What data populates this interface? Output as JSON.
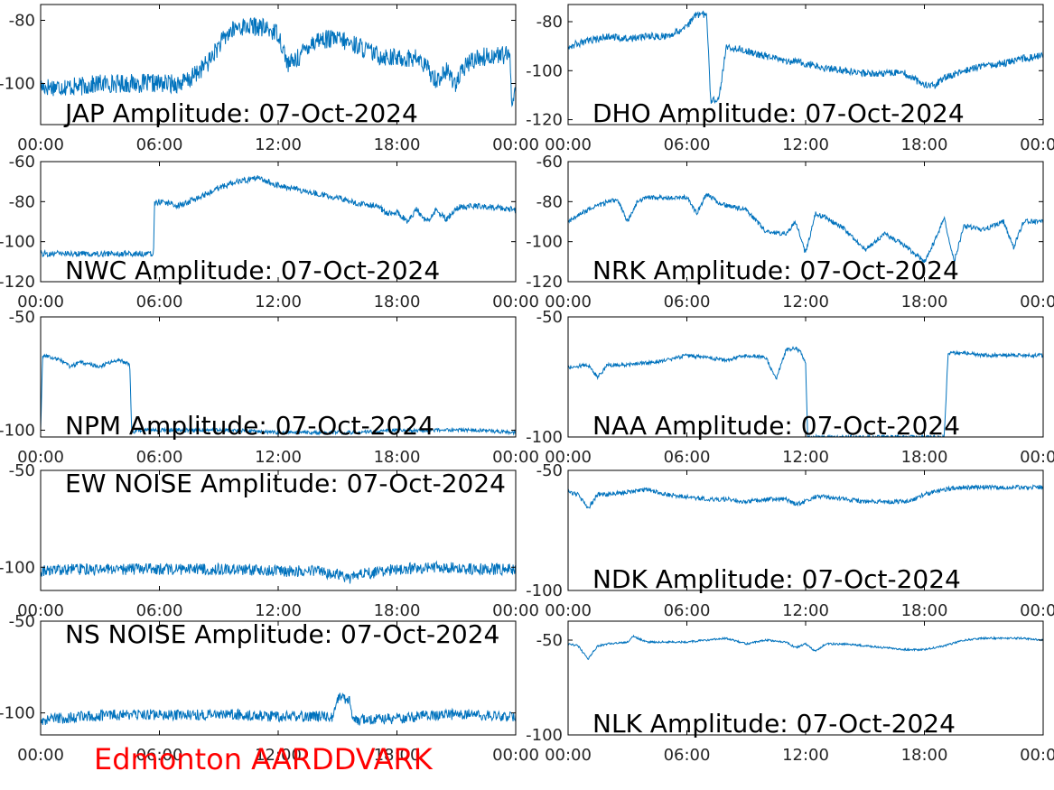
{
  "footer": "Edmonton AARDDVARK",
  "colors": {
    "trace": "#0072BD",
    "footer": "#ff0000",
    "axes": "#000000"
  },
  "chart_data": [
    {
      "id": "jap",
      "type": "line",
      "title": "JAP Amplitude: 07-Oct-2024",
      "xticks": [
        "00:00",
        "06:00",
        "12:00",
        "18:00",
        "00:00"
      ],
      "xlim": [
        0,
        24
      ],
      "yticks": [
        -80,
        -100
      ],
      "ytick_labels": [
        "-80",
        "-100"
      ],
      "ylim": [
        -113,
        -75
      ],
      "noise": 3,
      "series": [
        {
          "x": [
            0,
            1,
            2,
            3,
            4,
            5,
            6,
            7,
            7.5,
            8,
            8.5,
            9,
            9.5,
            10,
            11,
            12,
            12.5,
            13,
            13.5,
            14,
            15,
            16,
            17,
            18,
            19,
            19.5,
            20,
            20.5,
            21,
            21.5,
            22,
            23,
            23.5,
            23.7,
            23.8,
            24
          ],
          "y": [
            -101,
            -101,
            -101,
            -100,
            -100,
            -100,
            -100,
            -100,
            -99,
            -96,
            -93,
            -88,
            -84,
            -82,
            -82,
            -84,
            -94,
            -92,
            -88,
            -86,
            -86,
            -88,
            -91,
            -92,
            -92,
            -95,
            -99,
            -96,
            -100,
            -94,
            -92,
            -91,
            -91,
            -92,
            -105,
            -102
          ]
        }
      ]
    },
    {
      "id": "dho",
      "type": "line",
      "title": "DHO Amplitude: 07-Oct-2024",
      "xticks": [
        "00:00",
        "06:00",
        "12:00",
        "18:00",
        "00:00"
      ],
      "xlim": [
        0,
        24
      ],
      "yticks": [
        -80,
        -100,
        -120
      ],
      "ytick_labels": [
        "-80",
        "-100",
        "-120"
      ],
      "ylim": [
        -122,
        -73
      ],
      "noise": 1.5,
      "series": [
        {
          "x": [
            0,
            1,
            2,
            3,
            4,
            5,
            6,
            6.5,
            7,
            7.2,
            7.6,
            8,
            9,
            10,
            11,
            12,
            13,
            14,
            15,
            16,
            17,
            18,
            18.5,
            19,
            20,
            21,
            22,
            23,
            24
          ],
          "y": [
            -90,
            -88,
            -86,
            -87,
            -86,
            -86,
            -82,
            -77,
            -77,
            -112,
            -112,
            -90,
            -92,
            -94,
            -96,
            -97,
            -99,
            -100,
            -101,
            -101,
            -101,
            -106,
            -106,
            -103,
            -100,
            -98,
            -97,
            -95,
            -94
          ]
        }
      ]
    },
    {
      "id": "nwc",
      "type": "line",
      "title": "NWC Amplitude: 07-Oct-2024",
      "xticks": [
        "00:00",
        "06:00",
        "12:00",
        "18:00",
        "00:00"
      ],
      "xlim": [
        0,
        24
      ],
      "yticks": [
        -60,
        -80,
        -100,
        -120
      ],
      "ytick_labels": [
        "-60",
        "-80",
        "-100",
        "-120"
      ],
      "ylim": [
        -120,
        -60
      ],
      "noise": 1.5,
      "series": [
        {
          "x": [
            0,
            1,
            2,
            3,
            4,
            5,
            5.7,
            5.75,
            6,
            7,
            8,
            9,
            10,
            11,
            12,
            13,
            14,
            15,
            16,
            17,
            17.5,
            18,
            18.5,
            19,
            19.5,
            20,
            20.5,
            21,
            22,
            23,
            24
          ],
          "y": [
            -106,
            -106,
            -106,
            -106,
            -106,
            -106,
            -106,
            -81,
            -80,
            -82,
            -78,
            -73,
            -70,
            -68,
            -72,
            -74,
            -76,
            -78,
            -81,
            -82,
            -86,
            -85,
            -90,
            -84,
            -90,
            -84,
            -89,
            -83,
            -82,
            -83,
            -84
          ]
        }
      ]
    },
    {
      "id": "nrk",
      "type": "line",
      "title": "NRK Amplitude: 07-Oct-2024",
      "xticks": [
        "00:00",
        "06:00",
        "12:00",
        "18:00",
        "00:00"
      ],
      "xlim": [
        0,
        24
      ],
      "yticks": [
        -60,
        -80,
        -100,
        -120
      ],
      "ytick_labels": [
        "-60",
        "-80",
        "-100",
        "-120"
      ],
      "ylim": [
        -120,
        -60
      ],
      "noise": 1.2,
      "series": [
        {
          "x": [
            0,
            1,
            2,
            2.5,
            3,
            3.5,
            4,
            5,
            6,
            6.5,
            7,
            7.5,
            8,
            9,
            10,
            11,
            11.5,
            12,
            12.5,
            13,
            14,
            15,
            16,
            17,
            18,
            18.5,
            19,
            19.5,
            20,
            21,
            22,
            22.5,
            23,
            24
          ],
          "y": [
            -90,
            -84,
            -80,
            -79,
            -90,
            -80,
            -78,
            -78,
            -78,
            -86,
            -76,
            -80,
            -82,
            -84,
            -95,
            -96,
            -90,
            -106,
            -86,
            -88,
            -94,
            -104,
            -96,
            -102,
            -110,
            -100,
            -88,
            -110,
            -92,
            -94,
            -90,
            -103,
            -90,
            -90
          ]
        }
      ]
    },
    {
      "id": "npm",
      "type": "line",
      "title": "NPM Amplitude: 07-Oct-2024",
      "xticks": [
        "00:00",
        "06:00",
        "12:00",
        "18:00",
        "00:00"
      ],
      "xlim": [
        0,
        24
      ],
      "yticks": [
        -50,
        -100
      ],
      "ytick_labels": [
        "-50",
        "-100"
      ],
      "ylim": [
        -103,
        -50
      ],
      "noise": 0.8,
      "series": [
        {
          "x": [
            0,
            0.1,
            1,
            1.5,
            2,
            2.5,
            3,
            3.5,
            4,
            4.5,
            4.6,
            5,
            6,
            8,
            10,
            12,
            14,
            16,
            18,
            20,
            22,
            24
          ],
          "y": [
            -100,
            -67,
            -69,
            -72,
            -70,
            -71,
            -72,
            -70,
            -69,
            -71,
            -101,
            -100,
            -100,
            -100,
            -100,
            -101,
            -101,
            -101,
            -100,
            -100,
            -100,
            -101
          ]
        }
      ]
    },
    {
      "id": "naa",
      "type": "line",
      "title": "NAA Amplitude: 07-Oct-2024",
      "xticks": [
        "00:00",
        "06:00",
        "12:00",
        "18:00",
        "00:00"
      ],
      "xlim": [
        0,
        24
      ],
      "yticks": [
        -50,
        -100
      ],
      "ytick_labels": [
        "-50",
        "-100"
      ],
      "ylim": [
        -100,
        -50
      ],
      "noise": 0.8,
      "series": [
        {
          "x": [
            0,
            1,
            1.5,
            2,
            3,
            4,
            5,
            6,
            7,
            8,
            9,
            10,
            10.5,
            11,
            11.5,
            11.8,
            12,
            12.1,
            12.5,
            14,
            16,
            18,
            19,
            19.2,
            19.3,
            20,
            21,
            22,
            23,
            24
          ],
          "y": [
            -71,
            -70,
            -75,
            -70,
            -70,
            -69,
            -68,
            -66,
            -67,
            -68,
            -66,
            -67,
            -76,
            -64,
            -63,
            -65,
            -70,
            -100,
            -100,
            -100,
            -100,
            -100,
            -100,
            -65,
            -65,
            -65,
            -66,
            -66,
            -66,
            -66
          ]
        }
      ]
    },
    {
      "id": "ew-noise",
      "type": "line",
      "title": "EW NOISE Amplitude: 07-Oct-2024",
      "xticks": [
        "00:00",
        "06:00",
        "12:00",
        "18:00",
        "00:00"
      ],
      "xlim": [
        0,
        24
      ],
      "yticks": [
        -50,
        -100
      ],
      "ytick_labels": [
        "-50",
        "-100"
      ],
      "ylim": [
        -112,
        -50
      ],
      "noise": 3,
      "series": [
        {
          "x": [
            0,
            2,
            4,
            6,
            8,
            10,
            12,
            14,
            15,
            15.5,
            16,
            18,
            20,
            22,
            24
          ],
          "y": [
            -102,
            -101,
            -101,
            -101,
            -101,
            -101,
            -102,
            -102,
            -104,
            -106,
            -104,
            -101,
            -100,
            -101,
            -101
          ]
        }
      ]
    },
    {
      "id": "ndk",
      "type": "line",
      "title": "NDK Amplitude: 07-Oct-2024",
      "xticks": [
        "00:00",
        "06:00",
        "12:00",
        "18:00",
        "00:00"
      ],
      "xlim": [
        0,
        24
      ],
      "yticks": [
        -50,
        -100
      ],
      "ytick_labels": [
        "-50",
        "-100"
      ],
      "ylim": [
        -100,
        -50
      ],
      "noise": 0.9,
      "series": [
        {
          "x": [
            0,
            0.5,
            1,
            1.5,
            2,
            3,
            4,
            5,
            6,
            7,
            8,
            9,
            10,
            11,
            11.5,
            12,
            12.5,
            13,
            14,
            15,
            16,
            17,
            17.5,
            18,
            19,
            20,
            21,
            22,
            23,
            24
          ],
          "y": [
            -59,
            -60,
            -66,
            -60,
            -60,
            -59,
            -58,
            -60,
            -61,
            -62,
            -62,
            -63,
            -62,
            -62,
            -64,
            -63,
            -61,
            -61,
            -62,
            -63,
            -63,
            -63,
            -62,
            -60,
            -58,
            -57,
            -57,
            -57,
            -57,
            -57
          ]
        }
      ]
    },
    {
      "id": "ns-noise",
      "type": "line",
      "title": "NS NOISE Amplitude: 07-Oct-2024",
      "xticks": [
        "00:00",
        "06:00",
        "12:00",
        "18:00",
        "00:00"
      ],
      "xlim": [
        0,
        24
      ],
      "yticks": [
        -50,
        -100
      ],
      "ytick_labels": [
        "-50",
        "-100"
      ],
      "ylim": [
        -112,
        -50
      ],
      "noise": 3,
      "series": [
        {
          "x": [
            0,
            2,
            4,
            6,
            8,
            10,
            12,
            14,
            14.8,
            15,
            15.6,
            15.8,
            16,
            18,
            20,
            22,
            24
          ],
          "y": [
            -104,
            -102,
            -101,
            -101,
            -101,
            -101,
            -102,
            -102,
            -102,
            -92,
            -92,
            -104,
            -104,
            -103,
            -101,
            -101,
            -102
          ]
        }
      ]
    },
    {
      "id": "nlk",
      "type": "line",
      "title": "NLK Amplitude: 07-Oct-2024",
      "xticks": [
        "00:00",
        "06:00",
        "12:00",
        "18:00",
        "00:00"
      ],
      "xlim": [
        0,
        24
      ],
      "yticks": [
        -50,
        -100
      ],
      "ytick_labels": [
        "-50",
        "-100"
      ],
      "ylim": [
        -100,
        -40
      ],
      "noise": 0.5,
      "series": [
        {
          "x": [
            0,
            0.5,
            1,
            1.5,
            2,
            3,
            3.3,
            4,
            5,
            6,
            7,
            8,
            9,
            10,
            11,
            11.5,
            12,
            12.5,
            13,
            14,
            15,
            16,
            17,
            18,
            19,
            20,
            21,
            22,
            23,
            24
          ],
          "y": [
            -52,
            -53,
            -60,
            -53,
            -52,
            -51,
            -48,
            -51,
            -51,
            -51,
            -50,
            -49,
            -52,
            -50,
            -51,
            -54,
            -52,
            -56,
            -52,
            -52,
            -53,
            -54,
            -55,
            -55,
            -53,
            -50,
            -49,
            -49,
            -49,
            -50
          ]
        }
      ]
    }
  ]
}
